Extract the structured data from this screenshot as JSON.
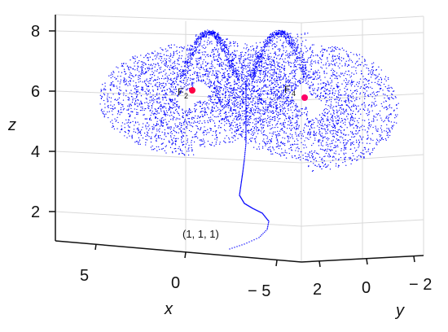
{
  "chart_data": {
    "type": "scatter",
    "projection": "3d",
    "axes": {
      "x": {
        "label": "x",
        "ticks": [
          "5",
          "0",
          "− 5"
        ]
      },
      "y": {
        "label": "y",
        "ticks": [
          "2",
          "0",
          "− 2"
        ]
      },
      "z": {
        "label": "z",
        "ticks": [
          "8",
          "6",
          "4",
          "2"
        ]
      }
    },
    "series": [
      {
        "style": "dots",
        "color": "#0000ff",
        "description_points": [
          {
            "label": "F",
            "sub": "2",
            "color": "#ff0044"
          },
          {
            "label": "F",
            "sub": "4",
            "color": "#ff0066"
          }
        ]
      }
    ],
    "annotation": "(1, 1, 1)",
    "grid": true
  },
  "colors": {
    "trajectory": "#0000ff",
    "equilibrium": "#ff0055",
    "grid": "#d9d9d9",
    "axis": "#111111"
  }
}
